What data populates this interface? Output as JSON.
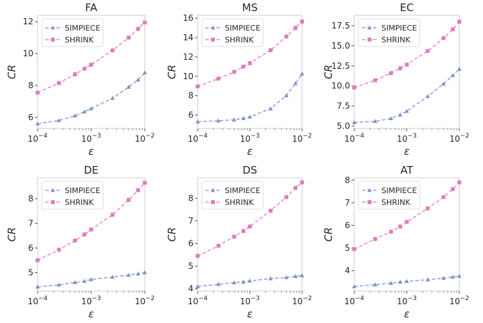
{
  "chart_data": [
    {
      "type": "line",
      "title": "FA",
      "xlabel": "ε",
      "ylabel": "CR",
      "xscale": "log",
      "xlim": [
        0.0001,
        0.01
      ],
      "x_ticks": [
        {
          "v": 0.0001,
          "base": "10",
          "exp": "−4"
        },
        {
          "v": 0.001,
          "base": "10",
          "exp": "−3"
        },
        {
          "v": 0.01,
          "base": "10",
          "exp": "−2"
        }
      ],
      "ylim": [
        5.3,
        12.4
      ],
      "y_ticks": [
        6,
        8,
        10,
        12
      ],
      "y_tick_labels": [
        "6",
        "8",
        "10",
        "12"
      ],
      "x": [
        0.0001,
        0.00025,
        0.0005,
        0.00075,
        0.001,
        0.0025,
        0.005,
        0.0075,
        0.01
      ],
      "series": [
        {
          "name": "SIMPIECE",
          "color": "#7d94c8",
          "marker": "triangle",
          "values": [
            5.6,
            5.8,
            6.1,
            6.35,
            6.55,
            7.2,
            7.9,
            8.35,
            8.8
          ]
        },
        {
          "name": "SHRINK",
          "color": "#e07bc0",
          "marker": "square",
          "values": [
            7.55,
            8.15,
            8.7,
            9.05,
            9.3,
            10.2,
            11.0,
            11.55,
            11.95
          ]
        }
      ],
      "legend": "top-left",
      "grid": false
    },
    {
      "type": "line",
      "title": "MS",
      "xlabel": "ε",
      "ylabel": "CR",
      "xscale": "log",
      "xlim": [
        0.0001,
        0.01
      ],
      "x_ticks": [
        {
          "v": 0.0001,
          "base": "10",
          "exp": "−4"
        },
        {
          "v": 0.001,
          "base": "10",
          "exp": "−3"
        },
        {
          "v": 0.01,
          "base": "10",
          "exp": "−2"
        }
      ],
      "ylim": [
        4.6,
        16.3
      ],
      "y_ticks": [
        6,
        8,
        10,
        12,
        14,
        16
      ],
      "y_tick_labels": [
        "6",
        "8",
        "10",
        "12",
        "14",
        "16"
      ],
      "x": [
        0.0001,
        0.00025,
        0.0005,
        0.00075,
        0.001,
        0.0025,
        0.005,
        0.0075,
        0.01
      ],
      "series": [
        {
          "name": "SIMPIECE",
          "color": "#7d94c8",
          "marker": "triangle",
          "values": [
            5.3,
            5.4,
            5.5,
            5.65,
            5.8,
            6.65,
            8.0,
            9.25,
            10.25
          ]
        },
        {
          "name": "SHRINK",
          "color": "#e07bc0",
          "marker": "square",
          "values": [
            8.95,
            9.75,
            10.45,
            11.0,
            11.35,
            12.7,
            14.1,
            15.0,
            15.65
          ]
        }
      ],
      "legend": "top-left",
      "grid": false
    },
    {
      "type": "line",
      "title": "EC",
      "xlabel": "ε",
      "ylabel": "CR",
      "xscale": "log",
      "xlim": [
        0.0001,
        0.01
      ],
      "x_ticks": [
        {
          "v": 0.0001,
          "base": "10",
          "exp": "−4"
        },
        {
          "v": 0.001,
          "base": "10",
          "exp": "−3"
        },
        {
          "v": 0.01,
          "base": "10",
          "exp": "−2"
        }
      ],
      "ylim": [
        4.7,
        18.8
      ],
      "y_ticks": [
        5.0,
        7.5,
        10.0,
        12.5,
        15.0,
        17.5
      ],
      "y_tick_labels": [
        "5.0",
        "7.5",
        "10.0",
        "12.5",
        "15.0",
        "17.5"
      ],
      "x": [
        0.0001,
        0.00025,
        0.0005,
        0.00075,
        0.001,
        0.0025,
        0.005,
        0.0075,
        0.01
      ],
      "series": [
        {
          "name": "SIMPIECE",
          "color": "#7d94c8",
          "marker": "triangle",
          "values": [
            5.45,
            5.6,
            5.95,
            6.4,
            6.85,
            8.7,
            10.25,
            11.3,
            12.1
          ]
        },
        {
          "name": "SHRINK",
          "color": "#e07bc0",
          "marker": "square",
          "values": [
            9.8,
            10.7,
            11.6,
            12.2,
            12.65,
            14.35,
            15.95,
            17.05,
            18.0
          ]
        }
      ],
      "legend": "top-left",
      "grid": false
    },
    {
      "type": "line",
      "title": "DE",
      "xlabel": "ε",
      "ylabel": "CR",
      "xscale": "log",
      "xlim": [
        0.0001,
        0.01
      ],
      "x_ticks": [
        {
          "v": 0.0001,
          "base": "10",
          "exp": "−4"
        },
        {
          "v": 0.001,
          "base": "10",
          "exp": "−3"
        },
        {
          "v": 0.01,
          "base": "10",
          "exp": "−2"
        }
      ],
      "ylim": [
        4.25,
        8.85
      ],
      "y_ticks": [
        5,
        6,
        7,
        8
      ],
      "y_tick_labels": [
        "5",
        "6",
        "7",
        "8"
      ],
      "x": [
        0.0001,
        0.00025,
        0.0005,
        0.00075,
        0.001,
        0.0025,
        0.005,
        0.0075,
        0.01
      ],
      "series": [
        {
          "name": "SIMPIECE",
          "color": "#7d94c8",
          "marker": "triangle",
          "values": [
            4.42,
            4.5,
            4.6,
            4.65,
            4.72,
            4.82,
            4.9,
            4.95,
            5.0
          ]
        },
        {
          "name": "SHRINK",
          "color": "#e07bc0",
          "marker": "square",
          "values": [
            5.5,
            5.93,
            6.3,
            6.55,
            6.75,
            7.35,
            7.95,
            8.35,
            8.65
          ]
        }
      ],
      "legend": "top-left",
      "grid": false
    },
    {
      "type": "line",
      "title": "DS",
      "xlabel": "ε",
      "ylabel": "CR",
      "xscale": "log",
      "xlim": [
        0.0001,
        0.01
      ],
      "x_ticks": [
        {
          "v": 0.0001,
          "base": "10",
          "exp": "−4"
        },
        {
          "v": 0.001,
          "base": "10",
          "exp": "−3"
        },
        {
          "v": 0.01,
          "base": "10",
          "exp": "−2"
        }
      ],
      "ylim": [
        3.9,
        8.9
      ],
      "y_ticks": [
        4,
        5,
        6,
        7,
        8
      ],
      "y_tick_labels": [
        "4",
        "5",
        "6",
        "7",
        "8"
      ],
      "x": [
        0.0001,
        0.00025,
        0.0005,
        0.00075,
        0.001,
        0.0025,
        0.005,
        0.0075,
        0.01
      ],
      "series": [
        {
          "name": "SIMPIECE",
          "color": "#7d94c8",
          "marker": "triangle",
          "values": [
            4.1,
            4.2,
            4.27,
            4.3,
            4.35,
            4.45,
            4.5,
            4.55,
            4.58
          ]
        },
        {
          "name": "SHRINK",
          "color": "#e07bc0",
          "marker": "square",
          "values": [
            5.45,
            5.9,
            6.3,
            6.55,
            6.75,
            7.45,
            8.05,
            8.45,
            8.7
          ]
        }
      ],
      "legend": "top-left",
      "grid": false
    },
    {
      "type": "line",
      "title": "AT",
      "xlabel": "ε",
      "ylabel": "CR",
      "xscale": "log",
      "xlim": [
        0.0001,
        0.01
      ],
      "x_ticks": [
        {
          "v": 0.0001,
          "base": "10",
          "exp": "−4"
        },
        {
          "v": 0.001,
          "base": "10",
          "exp": "−3"
        },
        {
          "v": 0.01,
          "base": "10",
          "exp": "−2"
        }
      ],
      "ylim": [
        3.1,
        8.1
      ],
      "y_ticks": [
        4,
        5,
        6,
        7,
        8
      ],
      "y_tick_labels": [
        "4",
        "5",
        "6",
        "7",
        "8"
      ],
      "x": [
        0.0001,
        0.00025,
        0.0005,
        0.00075,
        0.001,
        0.0025,
        0.005,
        0.0075,
        0.01
      ],
      "series": [
        {
          "name": "SIMPIECE",
          "color": "#7d94c8",
          "marker": "triangle",
          "values": [
            3.3,
            3.38,
            3.45,
            3.5,
            3.53,
            3.6,
            3.67,
            3.72,
            3.76
          ]
        },
        {
          "name": "SHRINK",
          "color": "#e07bc0",
          "marker": "square",
          "values": [
            4.95,
            5.4,
            5.72,
            5.95,
            6.15,
            6.75,
            7.25,
            7.6,
            7.9
          ]
        }
      ],
      "legend": "top-left",
      "grid": false
    }
  ]
}
